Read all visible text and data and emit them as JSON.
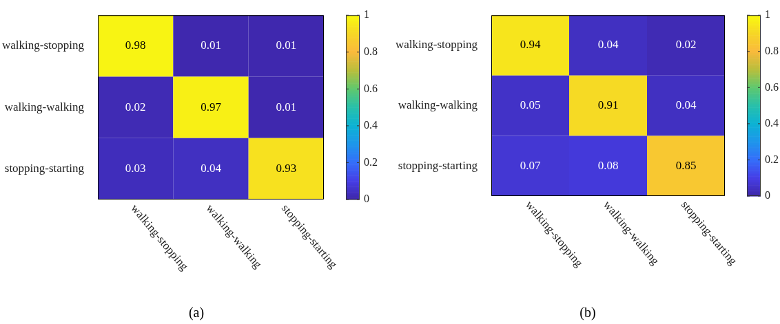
{
  "chart_data": [
    {
      "type": "heatmap",
      "categories": [
        "walking-stopping",
        "walking-walking",
        "stopping-starting"
      ],
      "y_categories": [
        "walking-stopping",
        "walking-walking",
        "stopping-starting"
      ],
      "cells": [
        [
          0.98,
          0.01,
          0.01
        ],
        [
          0.02,
          0.97,
          0.01
        ],
        [
          0.03,
          0.04,
          0.93
        ]
      ],
      "data_labels": true,
      "clim": [
        0,
        1
      ],
      "cticks": [
        0,
        0.2,
        0.4,
        0.6,
        0.8,
        1
      ],
      "annotations": [
        "(a)"
      ]
    },
    {
      "type": "heatmap",
      "categories": [
        "walking-stopping",
        "walking-walking",
        "stopping-starting"
      ],
      "y_categories": [
        "walking-stopping",
        "walking-walking",
        "stopping-starting"
      ],
      "cells": [
        [
          0.94,
          0.04,
          0.02
        ],
        [
          0.05,
          0.91,
          0.04
        ],
        [
          0.07,
          0.08,
          0.85
        ]
      ],
      "data_labels": true,
      "clim": [
        0,
        1
      ],
      "cticks": [
        0,
        0.2,
        0.4,
        0.6,
        0.8,
        1
      ],
      "annotations": [
        "(b)"
      ]
    }
  ]
}
